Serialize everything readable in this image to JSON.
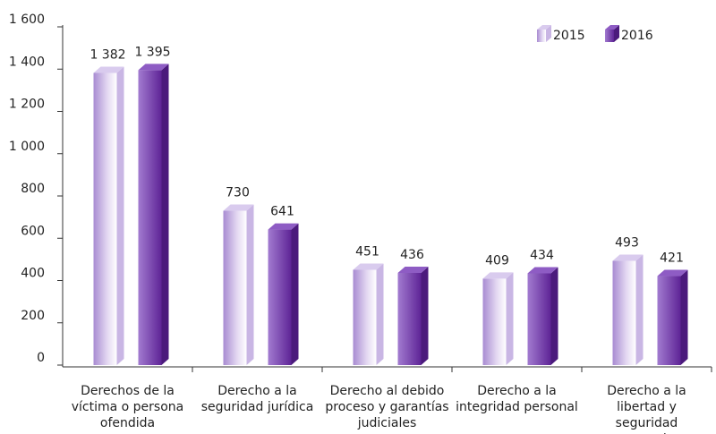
{
  "chart_data": {
    "type": "bar",
    "categories": [
      "Derechos de la víctima o persona ofendida",
      "Derecho a la seguridad jurídica",
      "Derecho al debido proceso y garantías judiciales",
      "Derecho a la integridad personal",
      "Derecho a la libertad y seguridad personales"
    ],
    "series": [
      {
        "name": "2015",
        "color": "#b9a2dc",
        "values": [
          1382,
          730,
          451,
          409,
          493
        ],
        "value_labels": [
          "1 382",
          "730",
          "451",
          "409",
          "493"
        ]
      },
      {
        "name": "2016",
        "color": "#7a3fb3",
        "values": [
          1395,
          641,
          436,
          434,
          421
        ],
        "value_labels": [
          "1 395",
          "641",
          "436",
          "434",
          "421"
        ]
      }
    ],
    "ylim": [
      0,
      1600
    ],
    "yticks": [
      0,
      200,
      400,
      600,
      800,
      {
        "value": 1000,
        "label": "1 000"
      },
      {
        "value": 1200,
        "label": "1 200"
      },
      {
        "value": 1400,
        "label": "1 400"
      },
      {
        "value": 1600,
        "label": "1 600"
      }
    ],
    "legend": "top-right"
  }
}
